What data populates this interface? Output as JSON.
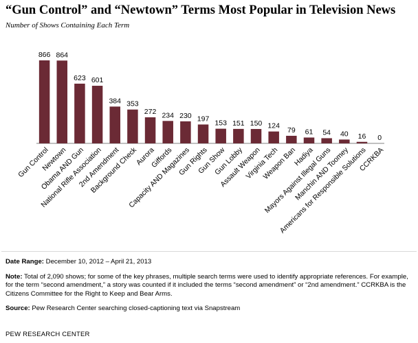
{
  "title": "“Gun Control” and “Newtown” Terms Most Popular in Television News",
  "subtitle": "Number of Shows Containing Each Term",
  "colors": {
    "bar": "#6b2a35",
    "axis": "#808080"
  },
  "chart_data": {
    "type": "bar",
    "title": "“Gun Control” and “Newtown” Terms Most Popular in Television News",
    "subtitle": "Number of Shows Containing Each Term",
    "xlabel": "",
    "ylabel": "",
    "ylim": [
      0,
      900
    ],
    "grid": false,
    "legend": "none",
    "categories": [
      "Gun Control",
      "Newtown",
      "Obama AND Gun",
      "National Rifle Association",
      "2nd Amendment",
      "Background Check",
      "Aurora",
      "Giffords",
      "Capacity AND Magazines",
      "Gun Rights",
      "Gun Show",
      "Gun Lobby",
      "Assault Weapon",
      "Virginia Tech",
      "Weapon Ban",
      "Hadiya",
      "Mayors Against Illegal Guns",
      "Manchin AND Toomey",
      "Americans for Responsible Solutions",
      "CCRKBA"
    ],
    "values": [
      866,
      864,
      623,
      601,
      384,
      353,
      272,
      234,
      230,
      197,
      153,
      151,
      150,
      124,
      79,
      61,
      54,
      40,
      16,
      0
    ]
  },
  "notes": {
    "date_range_label": "Date Range:",
    "date_range_text": "December 10, 2012 – April 21, 2013",
    "note_label": "Note:",
    "note_text": "Total of 2,090 shows; for some of the key phrases, multiple search terms were used to identify appropriate references. For example, for the term “second amendment,” a story was counted if it included the terms “second amendment” or “2nd amendment.” CCRKBA is the Citizens Committee for the Right to Keep and Bear Arms.",
    "source_label": "Source:",
    "source_text": "Pew Research Center searching closed-captioning text via Snapstream"
  },
  "footer": "PEW RESEARCH CENTER"
}
